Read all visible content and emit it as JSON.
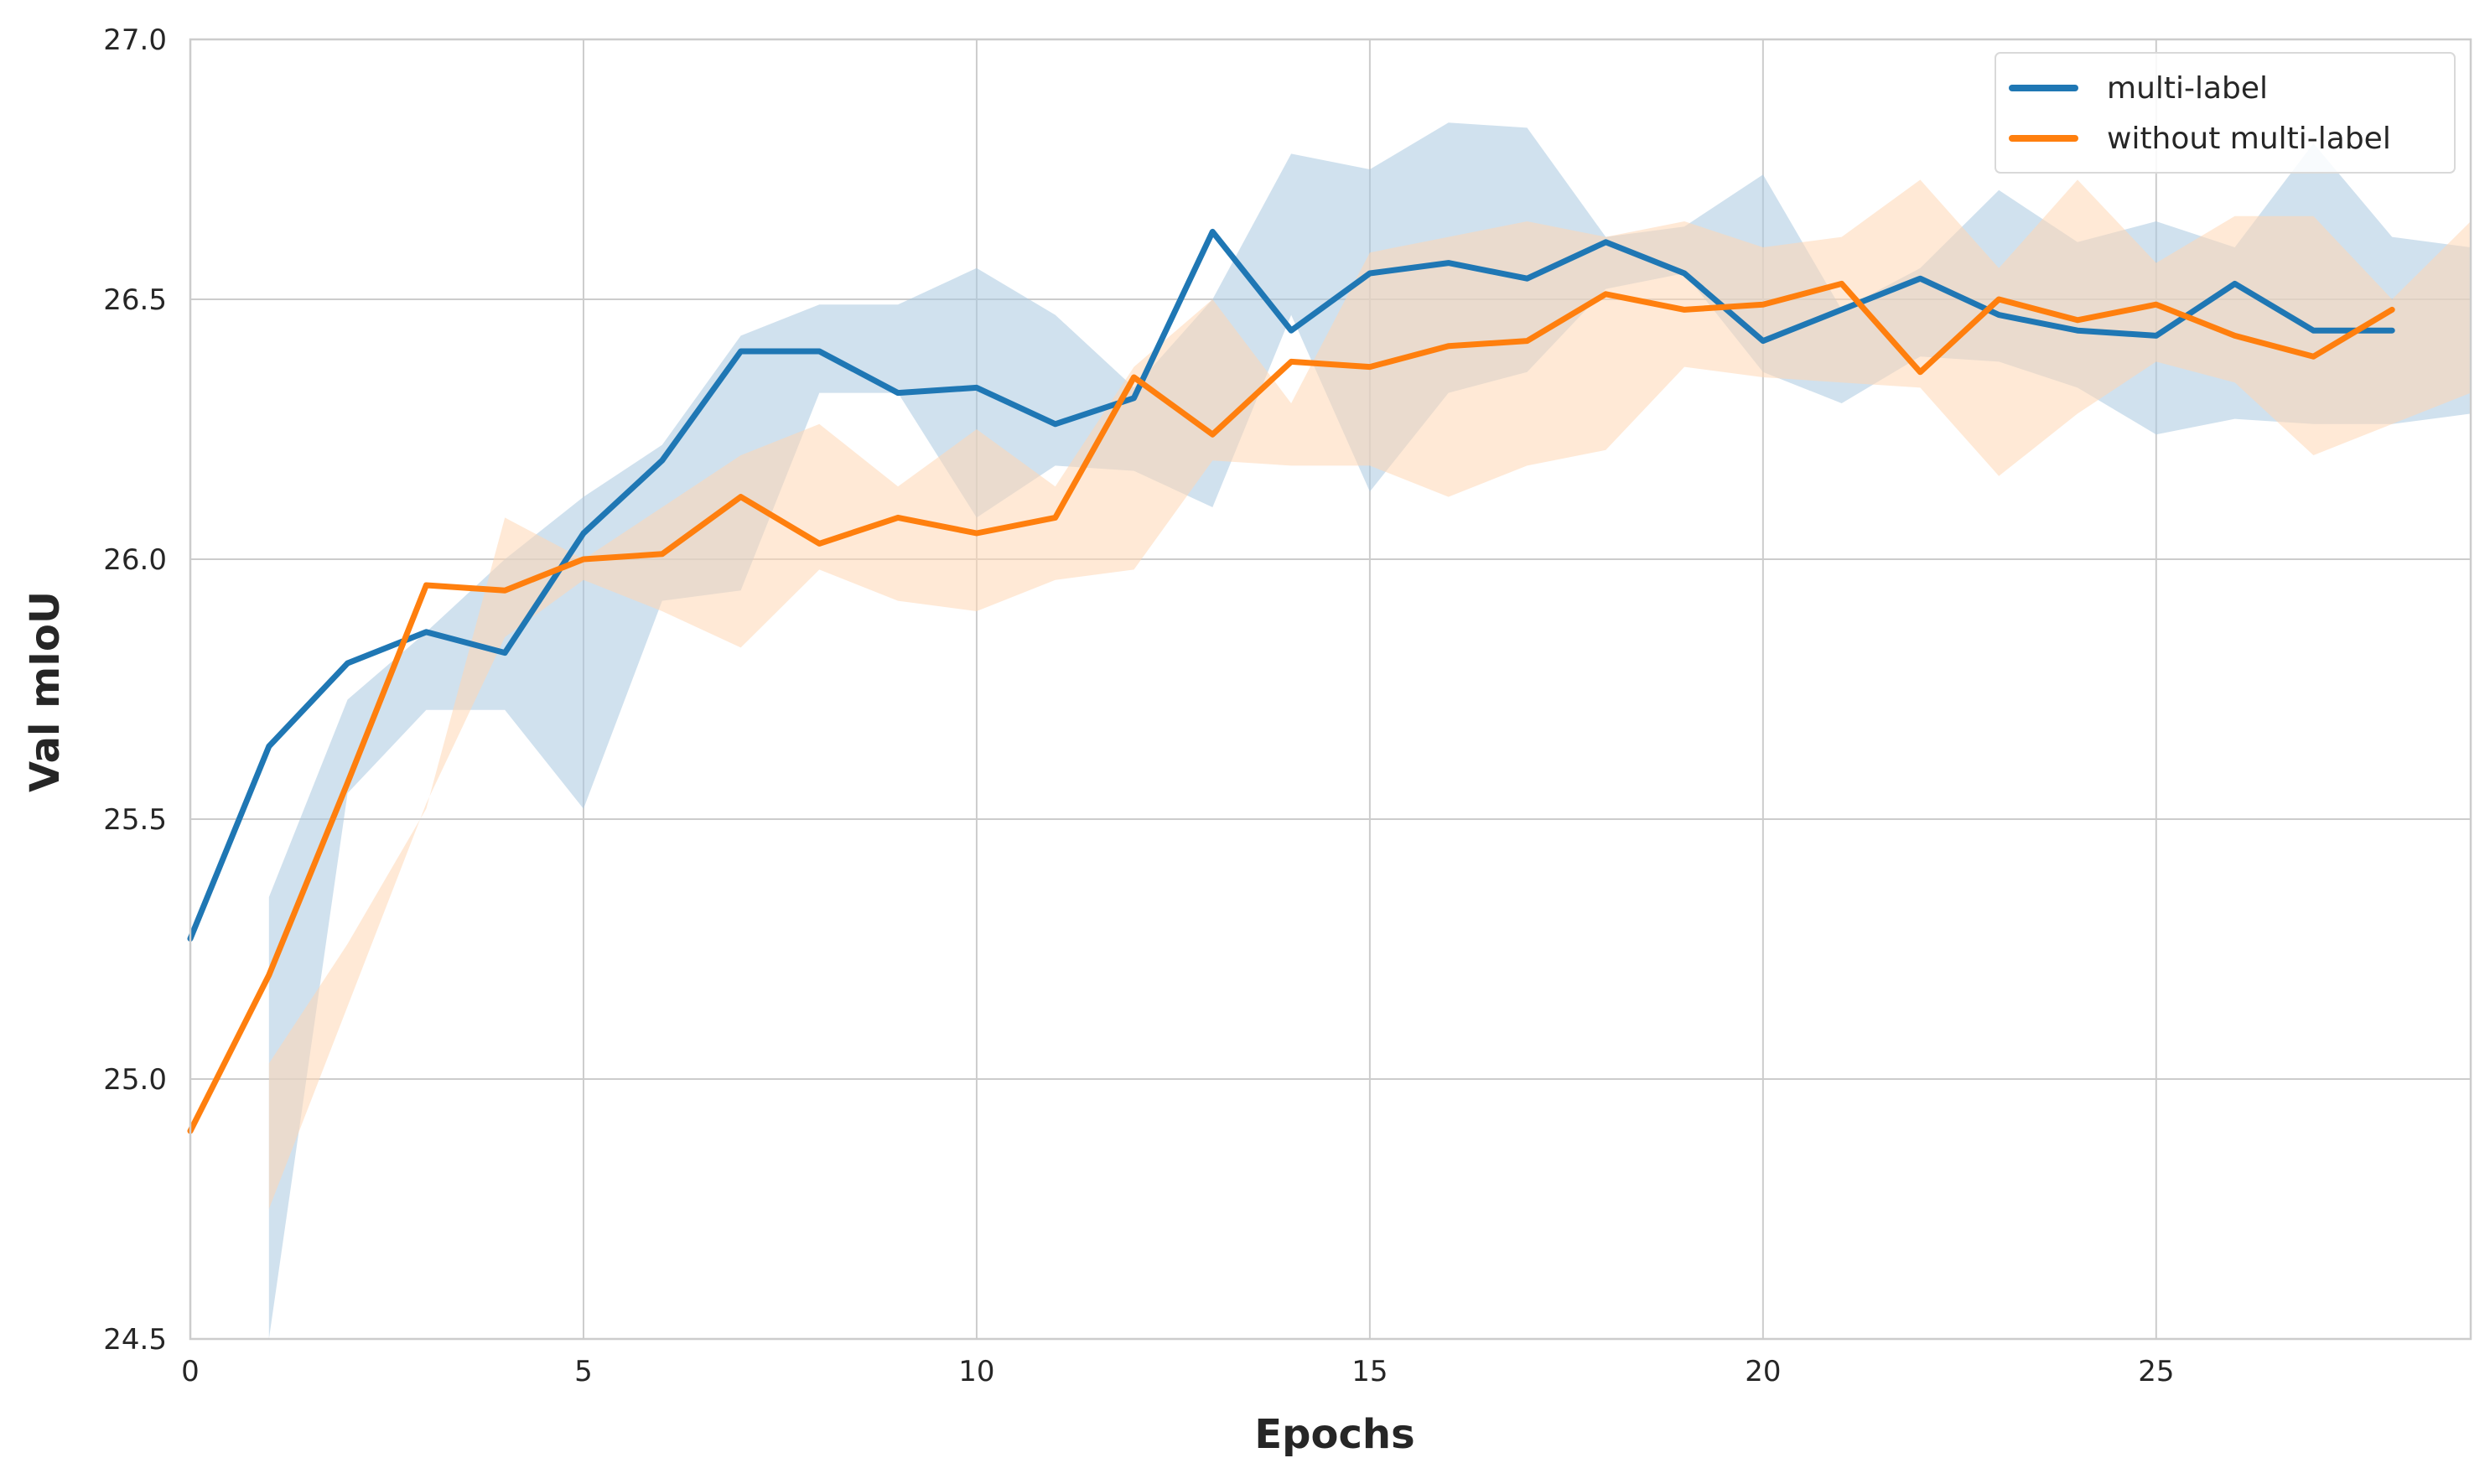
{
  "chart_data": {
    "type": "line",
    "xlabel": "Epochs",
    "ylabel": "Val mIoU",
    "xlim": [
      0,
      29
    ],
    "ylim": [
      24.5,
      27.0
    ],
    "xticks": [
      0,
      5,
      10,
      15,
      20,
      25
    ],
    "xtick_labels": [
      "0",
      "5",
      "10",
      "15",
      "20",
      "25"
    ],
    "yticks": [
      24.5,
      25.0,
      25.5,
      26.0,
      26.5,
      27.0
    ],
    "ytick_labels": [
      "24.5",
      "25.0",
      "25.5",
      "26.0",
      "26.5",
      "27.0"
    ],
    "grid": true,
    "legend_position": "top-right",
    "series": [
      {
        "name": "multi-label",
        "color": "#1f77b4",
        "band_color": "#aac8e0",
        "x": [
          0,
          1,
          2,
          3,
          4,
          5,
          6,
          7,
          8,
          9,
          10,
          11,
          12,
          13,
          14,
          15,
          16,
          17,
          18,
          19,
          20,
          21,
          22,
          23,
          24,
          25,
          26,
          27,
          28
        ],
        "values": [
          25.27,
          25.64,
          25.8,
          25.86,
          25.82,
          26.05,
          26.19,
          26.4,
          26.4,
          26.32,
          26.33,
          26.26,
          26.31,
          26.63,
          26.44,
          26.55,
          26.57,
          26.54,
          26.61,
          26.55,
          26.42,
          26.48,
          26.54,
          26.47,
          26.44,
          26.43,
          26.53,
          26.44,
          26.44
        ],
        "band_x": [
          1,
          2,
          3,
          4,
          5,
          6,
          7,
          8,
          9,
          10,
          11,
          12,
          13,
          14,
          15,
          16,
          17,
          18,
          19,
          20,
          21,
          22,
          23,
          24,
          25,
          26,
          27,
          28,
          29
        ],
        "band_lower": [
          24.5,
          25.55,
          25.71,
          25.71,
          25.52,
          25.92,
          25.94,
          26.32,
          26.32,
          26.08,
          26.18,
          26.17,
          26.1,
          26.47,
          26.13,
          26.32,
          26.36,
          26.52,
          26.55,
          26.36,
          26.3,
          26.39,
          26.38,
          26.33,
          26.24,
          26.27,
          26.26,
          26.26,
          26.28
        ],
        "band_upper": [
          25.35,
          25.73,
          25.86,
          26.0,
          26.12,
          26.22,
          26.43,
          26.49,
          26.49,
          26.56,
          26.47,
          26.33,
          26.5,
          26.78,
          26.75,
          26.84,
          26.83,
          26.62,
          26.64,
          26.74,
          26.48,
          26.56,
          26.71,
          26.61,
          26.65,
          26.6,
          26.8,
          26.62,
          26.6
        ]
      },
      {
        "name": "without multi-label",
        "color": "#ff7f0e",
        "band_color": "#ffd7b5",
        "x": [
          0,
          1,
          2,
          3,
          4,
          5,
          6,
          7,
          8,
          9,
          10,
          11,
          12,
          13,
          14,
          15,
          16,
          17,
          18,
          19,
          20,
          21,
          22,
          23,
          24,
          25,
          26,
          27,
          28
        ],
        "values": [
          24.9,
          25.2,
          25.57,
          25.95,
          25.94,
          26.0,
          26.01,
          26.12,
          26.03,
          26.08,
          26.05,
          26.08,
          26.35,
          26.24,
          26.38,
          26.37,
          26.41,
          26.42,
          26.51,
          26.48,
          26.49,
          26.53,
          26.36,
          26.5,
          26.46,
          26.49,
          26.43,
          26.39,
          26.48
        ],
        "band_x": [
          1,
          2,
          3,
          4,
          5,
          6,
          7,
          8,
          9,
          10,
          11,
          12,
          13,
          14,
          15,
          16,
          17,
          18,
          19,
          20,
          21,
          22,
          23,
          24,
          25,
          26,
          27,
          28,
          29
        ],
        "band_lower": [
          24.75,
          25.14,
          25.53,
          25.85,
          25.96,
          25.9,
          25.83,
          25.98,
          25.92,
          25.9,
          25.96,
          25.98,
          26.19,
          26.18,
          26.18,
          26.12,
          26.18,
          26.21,
          26.37,
          26.35,
          26.34,
          26.33,
          26.16,
          26.28,
          26.38,
          26.34,
          26.2,
          26.26,
          26.32
        ],
        "band_upper": [
          25.03,
          25.26,
          25.52,
          26.08,
          26.0,
          26.1,
          26.2,
          26.26,
          26.14,
          26.25,
          26.14,
          26.37,
          26.5,
          26.3,
          26.59,
          26.62,
          26.65,
          26.62,
          26.65,
          26.6,
          26.62,
          26.73,
          26.56,
          26.73,
          26.57,
          26.66,
          26.66,
          26.5,
          26.65
        ]
      }
    ]
  }
}
